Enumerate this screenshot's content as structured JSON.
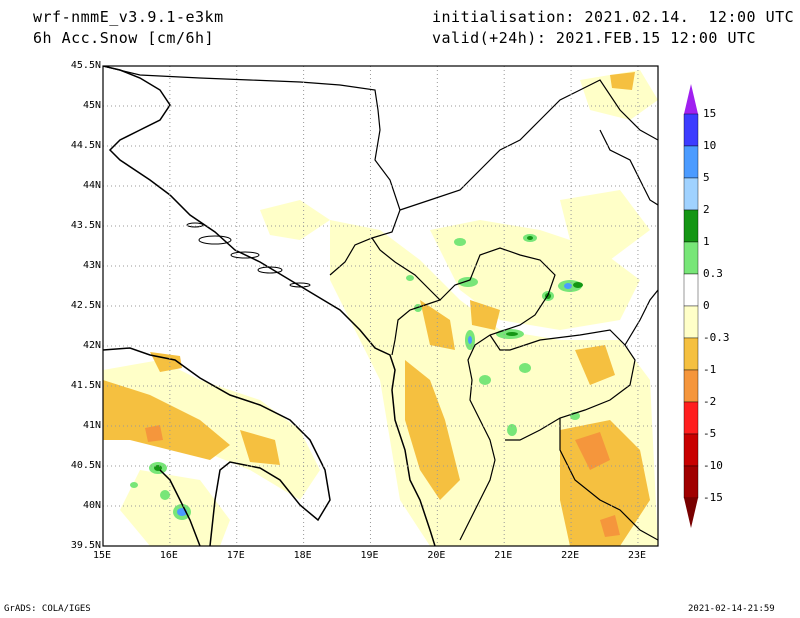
{
  "header": {
    "model": "wrf-nmmE_v3.9.1-e3km",
    "field": "6h Acc.Snow [cm/6h]",
    "init": "initialisation: 2021.02.14.  12:00 UTC",
    "valid": "valid(+24h): 2021.FEB.15 12:00 UTC"
  },
  "map": {
    "lon_range": [
      15,
      23.3
    ],
    "lat_range": [
      39.5,
      45.5
    ],
    "lat_ticks": [
      "45.5N",
      "45N",
      "44.5N",
      "44N",
      "43.5N",
      "43N",
      "42.5N",
      "42N",
      "41.5N",
      "41N",
      "40.5N",
      "40N",
      "39.5N"
    ],
    "lon_ticks": [
      "15E",
      "16E",
      "17E",
      "18E",
      "19E",
      "20E",
      "21E",
      "22E",
      "23E"
    ],
    "grid": true
  },
  "colorbar": {
    "labels": [
      "15",
      "10",
      "5",
      "2",
      "1",
      "0.3",
      "0",
      "-0.3",
      "-1",
      "-2",
      "-5",
      "-10",
      "-15"
    ],
    "colors": [
      "#a020f0",
      "#3c3cff",
      "#4b9bff",
      "#a0d2ff",
      "#149614",
      "#78e678",
      "#ffffff",
      "#ffffc8",
      "#f5c040",
      "#f5963c",
      "#ff1e1e",
      "#c80000",
      "#a00000",
      "#780000"
    ]
  },
  "footer": {
    "left": "GrADS: COLA/IGES",
    "right": "2021-02-14-21:59"
  }
}
